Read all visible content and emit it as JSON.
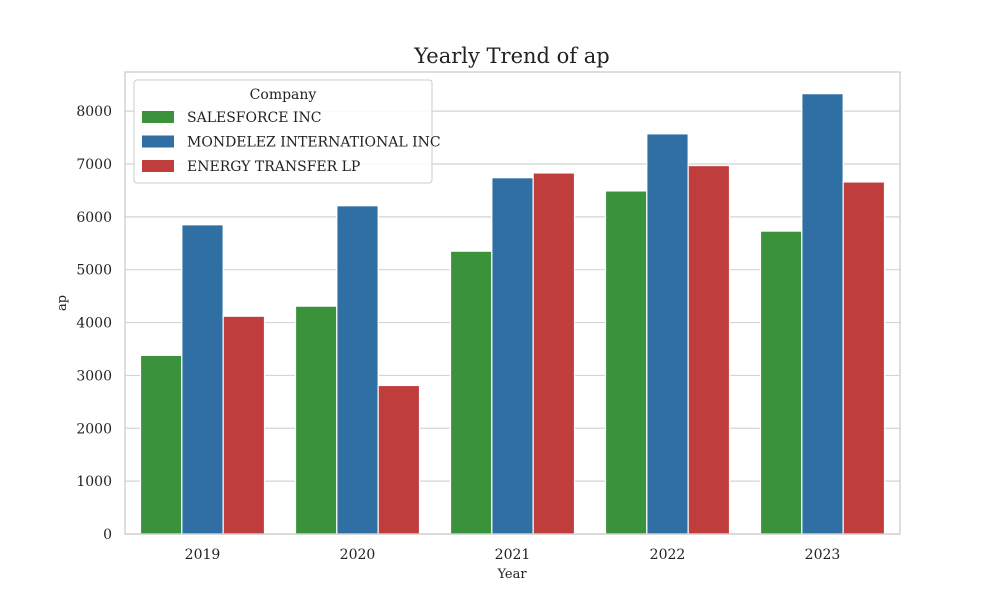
{
  "chart_data": {
    "type": "bar",
    "title": "Yearly Trend of ap",
    "xlabel": "Year",
    "ylabel": "ap",
    "categories": [
      "2019",
      "2020",
      "2021",
      "2022",
      "2023"
    ],
    "series": [
      {
        "name": "SALESFORCE INC",
        "color": "#3a923a",
        "values": [
          3380,
          4310,
          5350,
          6490,
          5730
        ]
      },
      {
        "name": "MONDELEZ INTERNATIONAL INC",
        "color": "#2f6fa3",
        "values": [
          5850,
          6210,
          6740,
          7570,
          8330
        ]
      },
      {
        "name": "ENERGY TRANSFER LP",
        "color": "#c03d3e",
        "values": [
          4120,
          2810,
          6830,
          6970,
          6660
        ]
      }
    ],
    "ylim": [
      0,
      8740
    ],
    "yticks": [
      0,
      1000,
      2000,
      3000,
      4000,
      5000,
      6000,
      7000,
      8000
    ],
    "grid": true,
    "legend": {
      "title": "Company",
      "placement": "top-left"
    }
  }
}
